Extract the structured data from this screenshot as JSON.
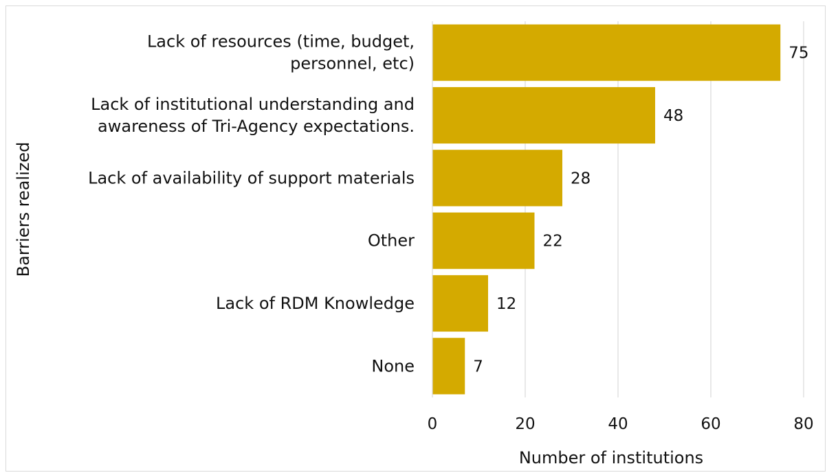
{
  "chart_data": {
    "type": "bar",
    "orientation": "horizontal",
    "categories": [
      "Lack of resources (time, budget, personnel, etc)",
      "Lack of institutional understanding and awareness of Tri-Agency expectations.",
      "Lack of availability of support materials",
      "Other",
      "Lack of RDM Knowledge",
      "None"
    ],
    "category_lines": [
      [
        "Lack of resources (time, budget,",
        "personnel, etc)"
      ],
      [
        "Lack of institutional understanding and",
        "awareness of Tri-Agency expectations."
      ],
      [
        "Lack of availability of support materials"
      ],
      [
        "Other"
      ],
      [
        "Lack of RDM Knowledge"
      ],
      [
        "None"
      ]
    ],
    "values": [
      75,
      48,
      28,
      22,
      12,
      7
    ],
    "data_labels": [
      "75",
      "48",
      "28",
      "22",
      "12",
      "7"
    ],
    "xlim": [
      0,
      80
    ],
    "x_ticks": [
      0,
      20,
      40,
      60,
      80
    ],
    "x_tick_labels": [
      "0",
      "20",
      "40",
      "60",
      "80"
    ],
    "xlabel": "Number of institutions",
    "ylabel": "Barriers realized",
    "grid": "vertical",
    "legend": "none",
    "bar_color": "#D4AA00",
    "grid_color": "#D9D9D9"
  }
}
